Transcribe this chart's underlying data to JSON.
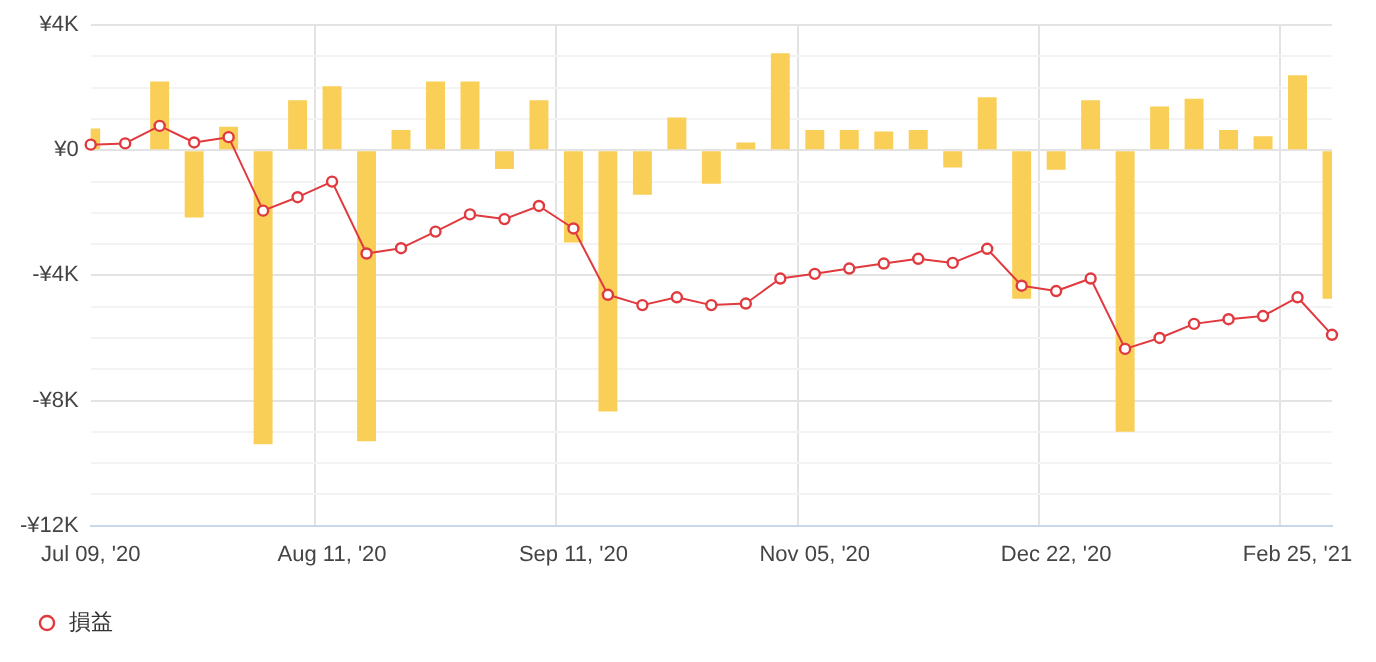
{
  "chart_data": {
    "type": "bar",
    "categories": [
      "Jul 09, '20",
      null,
      null,
      null,
      null,
      null,
      null,
      "Aug 11, '20",
      null,
      null,
      null,
      null,
      null,
      null,
      "Sep 11, '20",
      null,
      null,
      null,
      null,
      null,
      null,
      "Nov 05, '20",
      null,
      null,
      null,
      null,
      null,
      null,
      "Dec 22, '20",
      null,
      null,
      null,
      null,
      null,
      null,
      "Feb 25, '21",
      null
    ],
    "series": [
      {
        "color": "#f9cf58",
        "values": [
          0.7,
          null,
          2.2,
          -2.15,
          0.75,
          -9.4,
          1.6,
          2.05,
          -9.3,
          0.65,
          2.2,
          2.2,
          -0.6,
          1.6,
          -2.95,
          -8.35,
          -1.42,
          1.05,
          -1.07,
          0.25,
          3.1,
          0.65,
          0.65,
          0.6,
          0.65,
          -0.55,
          1.7,
          -4.75,
          -0.62,
          1.6,
          -9.0,
          1.4,
          1.65,
          0.65,
          0.45,
          2.4,
          -4.75
        ]
      },
      {
        "type": "line",
        "name": "損益",
        "color": "#e0393e",
        "marker": "circle",
        "values": [
          0.18,
          0.22,
          0.78,
          0.25,
          0.42,
          -1.93,
          -1.5,
          -1.0,
          -3.3,
          -3.13,
          -2.6,
          -2.05,
          -2.2,
          -1.78,
          -2.5,
          -4.62,
          -4.95,
          -4.7,
          -4.95,
          -4.9,
          -4.1,
          -3.95,
          -3.78,
          -3.62,
          -3.47,
          -3.6,
          -3.15,
          -4.33,
          -4.5,
          -4.1,
          -6.35,
          -6.0,
          -5.55,
          -5.4,
          -5.3,
          -4.7,
          -5.9
        ]
      }
    ],
    "ylim": [
      -12,
      4
    ],
    "yticks": [
      {
        "value": 4,
        "label": "¥4K"
      },
      {
        "value": 3,
        "label": null
      },
      {
        "value": 2,
        "label": null
      },
      {
        "value": 1,
        "label": null
      },
      {
        "value": 0,
        "label": "¥0"
      },
      {
        "value": -1,
        "label": null
      },
      {
        "value": -2,
        "label": null
      },
      {
        "value": -3,
        "label": null
      },
      {
        "value": -4,
        "label": "-¥4K"
      },
      {
        "value": -5,
        "label": null
      },
      {
        "value": -6,
        "label": null
      },
      {
        "value": -7,
        "label": null
      },
      {
        "value": -8,
        "label": "-¥8K"
      },
      {
        "value": -9,
        "label": null
      },
      {
        "value": -10,
        "label": null
      },
      {
        "value": -11,
        "label": null
      },
      {
        "value": -12,
        "label": "-¥12K"
      }
    ],
    "grid": true,
    "legend": "bottom left"
  }
}
